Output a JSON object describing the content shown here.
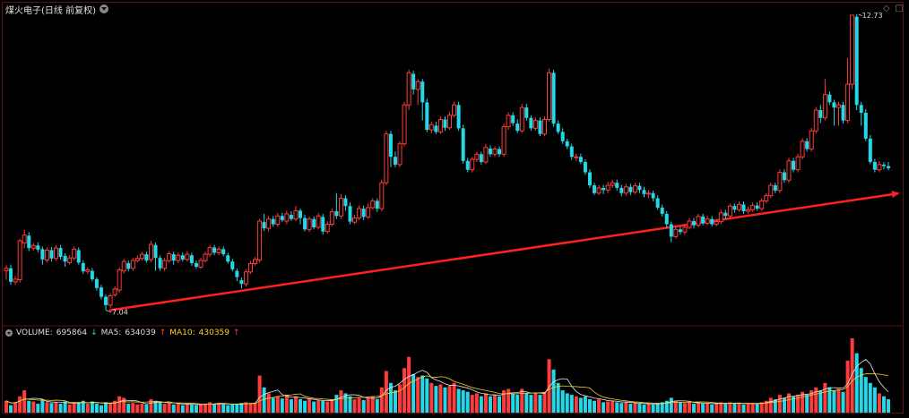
{
  "header": {
    "title": "煤火电子(日线 前复权)"
  },
  "volume_legend": {
    "volume_label": "VOLUME: ",
    "volume_value": "695864",
    "volume_arrow": "↓",
    "ma5_label": "MA5: ",
    "ma5_value": "634039",
    "ma5_arrow": "↑",
    "ma10_label": "MA10: ",
    "ma10_value": "430359",
    "ma10_arrow": "↑"
  },
  "colors": {
    "up": "#ff3b3b",
    "down": "#25d8e8",
    "trendline": "#ff2020",
    "ma5": "#e8e8e8",
    "ma10": "#f5d22c"
  },
  "chart_data": {
    "type": "candlestick",
    "price_range": [
      7.0,
      12.73
    ],
    "annotations": {
      "low": "7.04",
      "high": "12.73"
    },
    "trendline": {
      "start_price": 7.04,
      "end_price": 9.3
    },
    "candles": [
      [
        7.8,
        7.85,
        7.91,
        7.63
      ],
      [
        7.85,
        7.59,
        7.92,
        7.53
      ],
      [
        7.59,
        7.64,
        7.7,
        7.53
      ],
      [
        7.63,
        8.38,
        8.42,
        7.58
      ],
      [
        8.34,
        8.49,
        8.59,
        8.24
      ],
      [
        8.48,
        8.24,
        8.55,
        8.18
      ],
      [
        8.24,
        8.29,
        8.34,
        8.19
      ],
      [
        8.29,
        8.21,
        8.35,
        8.16
      ],
      [
        8.22,
        8.02,
        8.27,
        7.92
      ],
      [
        8.01,
        8.2,
        8.25,
        7.96
      ],
      [
        8.2,
        8.04,
        8.26,
        7.98
      ],
      [
        8.04,
        8.24,
        8.29,
        8.0
      ],
      [
        8.24,
        8.07,
        8.3,
        8.02
      ],
      [
        8.09,
        7.98,
        8.14,
        7.88
      ],
      [
        7.96,
        8.05,
        8.1,
        7.92
      ],
      [
        8.05,
        8.22,
        8.27,
        8.0
      ],
      [
        8.2,
        7.96,
        8.25,
        7.92
      ],
      [
        7.95,
        7.79,
        8.0,
        7.74
      ],
      [
        7.79,
        7.82,
        7.87,
        7.74
      ],
      [
        7.8,
        7.64,
        7.85,
        7.6
      ],
      [
        7.64,
        7.47,
        7.68,
        7.42
      ],
      [
        7.48,
        7.3,
        7.53,
        7.25
      ],
      [
        7.3,
        7.14,
        7.35,
        7.04
      ],
      [
        7.14,
        7.32,
        7.37,
        7.09
      ],
      [
        7.34,
        7.45,
        7.5,
        7.3
      ],
      [
        7.43,
        7.82,
        7.87,
        7.38
      ],
      [
        7.8,
        7.98,
        8.03,
        7.75
      ],
      [
        7.95,
        7.84,
        8.0,
        7.79
      ],
      [
        7.85,
        8.0,
        8.05,
        7.8
      ],
      [
        8.0,
        8.04,
        8.1,
        7.96
      ],
      [
        8.04,
        8.12,
        8.17,
        8.0
      ],
      [
        8.12,
        8.0,
        8.17,
        7.96
      ],
      [
        8.02,
        8.31,
        8.38,
        7.97
      ],
      [
        8.3,
        8.05,
        8.35,
        7.8
      ],
      [
        8.05,
        7.85,
        8.1,
        7.8
      ],
      [
        7.85,
        8.0,
        8.05,
        7.8
      ],
      [
        8.0,
        8.13,
        8.18,
        7.96
      ],
      [
        8.12,
        8.0,
        8.17,
        7.92
      ],
      [
        8.0,
        8.1,
        8.15,
        7.95
      ],
      [
        8.1,
        8.02,
        8.15,
        7.98
      ],
      [
        8.02,
        8.12,
        8.18,
        7.98
      ],
      [
        8.1,
        7.95,
        8.15,
        7.9
      ],
      [
        7.95,
        7.88,
        8.0,
        7.84
      ],
      [
        7.87,
        8.0,
        8.05,
        7.84
      ],
      [
        8.0,
        8.12,
        8.17,
        7.96
      ],
      [
        8.12,
        8.25,
        8.3,
        8.07
      ],
      [
        8.25,
        8.15,
        8.3,
        8.1
      ],
      [
        8.15,
        8.22,
        8.27,
        8.1
      ],
      [
        8.22,
        8.12,
        8.27,
        8.08
      ],
      [
        8.1,
        7.98,
        8.15,
        7.94
      ],
      [
        7.98,
        7.83,
        8.03,
        7.79
      ],
      [
        7.8,
        7.68,
        7.85,
        7.6
      ],
      [
        7.62,
        7.55,
        7.67,
        7.46
      ],
      [
        7.55,
        7.78,
        7.83,
        7.5
      ],
      [
        7.78,
        7.94,
        7.99,
        7.74
      ],
      [
        7.94,
        8.02,
        8.07,
        7.9
      ],
      [
        8.01,
        8.76,
        8.8,
        7.96
      ],
      [
        8.74,
        8.62,
        8.9,
        8.57
      ],
      [
        8.62,
        8.8,
        8.86,
        8.56
      ],
      [
        8.8,
        8.7,
        8.86,
        8.65
      ],
      [
        8.7,
        8.86,
        8.92,
        8.65
      ],
      [
        8.86,
        8.78,
        8.92,
        8.74
      ],
      [
        8.76,
        8.9,
        8.96,
        8.7
      ],
      [
        8.88,
        8.8,
        8.95,
        8.76
      ],
      [
        8.8,
        8.96,
        9.05,
        8.76
      ],
      [
        8.96,
        8.82,
        9.0,
        8.7
      ],
      [
        8.82,
        8.6,
        8.88,
        8.56
      ],
      [
        8.6,
        8.8,
        8.85,
        8.55
      ],
      [
        8.8,
        8.64,
        8.85,
        8.6
      ],
      [
        8.64,
        8.86,
        8.92,
        8.6
      ],
      [
        8.84,
        8.56,
        8.9,
        8.5
      ],
      [
        8.56,
        8.7,
        8.76,
        8.52
      ],
      [
        8.7,
        8.94,
        9.0,
        8.66
      ],
      [
        8.95,
        8.86,
        9.3,
        8.8
      ],
      [
        8.86,
        9.2,
        9.28,
        8.8
      ],
      [
        9.2,
        9.05,
        9.26,
        8.96
      ],
      [
        9.05,
        8.75,
        9.12,
        8.7
      ],
      [
        8.74,
        8.82,
        8.88,
        8.7
      ],
      [
        8.82,
        9.0,
        9.06,
        8.78
      ],
      [
        9.0,
        8.84,
        9.06,
        8.78
      ],
      [
        8.84,
        9.02,
        9.1,
        8.8
      ],
      [
        9.02,
        9.15,
        9.2,
        8.98
      ],
      [
        9.15,
        9.0,
        9.2,
        8.94
      ],
      [
        9.0,
        9.5,
        9.56,
        8.95
      ],
      [
        9.5,
        10.44,
        10.5,
        9.45
      ],
      [
        10.44,
        10.0,
        10.5,
        9.8
      ],
      [
        10.0,
        9.85,
        10.1,
        9.8
      ],
      [
        9.85,
        10.25,
        10.3,
        9.8
      ],
      [
        10.25,
        11.0,
        11.06,
        10.2
      ],
      [
        11.0,
        11.62,
        11.68,
        10.9
      ],
      [
        11.6,
        11.3,
        11.66,
        11.2
      ],
      [
        11.3,
        11.45,
        11.5,
        11.0
      ],
      [
        11.45,
        11.05,
        11.5,
        10.7
      ],
      [
        11.05,
        10.52,
        11.12,
        10.48
      ],
      [
        10.52,
        10.62,
        10.68,
        10.45
      ],
      [
        10.6,
        10.48,
        10.68,
        10.44
      ],
      [
        10.48,
        10.72,
        10.78,
        10.44
      ],
      [
        10.72,
        10.56,
        10.78,
        10.5
      ],
      [
        10.56,
        10.8,
        10.86,
        10.52
      ],
      [
        10.8,
        11.0,
        11.06,
        10.76
      ],
      [
        11.0,
        10.55,
        11.06,
        10.5
      ],
      [
        10.55,
        9.92,
        10.62,
        9.87
      ],
      [
        9.92,
        9.75,
        9.98,
        9.7
      ],
      [
        9.75,
        9.95,
        10.0,
        9.7
      ],
      [
        9.95,
        10.05,
        10.1,
        9.9
      ],
      [
        10.05,
        9.9,
        10.1,
        9.85
      ],
      [
        9.9,
        10.18,
        10.25,
        9.86
      ],
      [
        10.16,
        10.05,
        10.22,
        10.0
      ],
      [
        10.05,
        10.15,
        10.2,
        10.0
      ],
      [
        10.15,
        10.05,
        10.2,
        10.0
      ],
      [
        10.05,
        10.58,
        10.64,
        10.0
      ],
      [
        10.58,
        10.8,
        10.86,
        10.52
      ],
      [
        10.8,
        10.65,
        10.86,
        10.6
      ],
      [
        10.64,
        10.5,
        10.72,
        10.46
      ],
      [
        10.5,
        10.95,
        11.02,
        10.46
      ],
      [
        10.95,
        10.75,
        11.02,
        10.7
      ],
      [
        10.75,
        10.55,
        10.8,
        10.5
      ],
      [
        10.55,
        10.7,
        10.76,
        10.5
      ],
      [
        10.7,
        10.44,
        10.76,
        10.4
      ],
      [
        10.44,
        10.72,
        10.78,
        10.4
      ],
      [
        10.72,
        11.62,
        11.7,
        10.68
      ],
      [
        11.62,
        10.64,
        11.68,
        10.58
      ],
      [
        10.64,
        10.48,
        10.7,
        10.44
      ],
      [
        10.48,
        10.3,
        10.55,
        10.25
      ],
      [
        10.3,
        10.2,
        10.35,
        10.15
      ],
      [
        10.2,
        10.0,
        10.25,
        9.94
      ],
      [
        10.0,
        10.0,
        10.06,
        9.92
      ],
      [
        10.0,
        9.9,
        10.06,
        9.86
      ],
      [
        9.9,
        9.7,
        9.95,
        9.65
      ],
      [
        9.7,
        9.45,
        9.76,
        9.4
      ],
      [
        9.45,
        9.3,
        9.5,
        9.26
      ],
      [
        9.3,
        9.4,
        9.46,
        9.26
      ],
      [
        9.4,
        9.36,
        9.46,
        9.28
      ],
      [
        9.36,
        9.45,
        9.52,
        9.3
      ],
      [
        9.45,
        9.5,
        9.56,
        9.4
      ],
      [
        9.5,
        9.4,
        9.56,
        9.35
      ],
      [
        9.4,
        9.3,
        9.46,
        9.24
      ],
      [
        9.3,
        9.42,
        9.48,
        9.25
      ],
      [
        9.42,
        9.32,
        9.48,
        9.26
      ],
      [
        9.32,
        9.44,
        9.5,
        9.28
      ],
      [
        9.44,
        9.36,
        9.5,
        9.3
      ],
      [
        9.36,
        9.28,
        9.42,
        9.22
      ],
      [
        9.28,
        9.3,
        9.36,
        9.2
      ],
      [
        9.3,
        9.2,
        9.35,
        9.14
      ],
      [
        9.2,
        9.02,
        9.26,
        8.98
      ],
      [
        9.02,
        8.9,
        9.08,
        8.85
      ],
      [
        8.9,
        8.7,
        8.95,
        8.62
      ],
      [
        8.7,
        8.46,
        8.75,
        8.35
      ],
      [
        8.46,
        8.6,
        8.66,
        8.42
      ],
      [
        8.6,
        8.55,
        8.65,
        8.5
      ],
      [
        8.55,
        8.64,
        8.7,
        8.5
      ],
      [
        8.64,
        8.76,
        8.82,
        8.6
      ],
      [
        8.76,
        8.68,
        8.82,
        8.62
      ],
      [
        8.68,
        8.85,
        8.9,
        8.64
      ],
      [
        8.85,
        8.72,
        8.9,
        8.68
      ],
      [
        8.72,
        8.8,
        8.86,
        8.68
      ],
      [
        8.8,
        8.7,
        8.86,
        8.66
      ],
      [
        8.7,
        8.75,
        8.8,
        8.66
      ],
      [
        8.75,
        8.92,
        8.98,
        8.7
      ],
      [
        8.92,
        8.86,
        8.98,
        8.8
      ],
      [
        8.86,
        9.05,
        9.1,
        8.82
      ],
      [
        9.05,
        8.98,
        9.1,
        8.92
      ],
      [
        8.98,
        9.08,
        9.14,
        8.94
      ],
      [
        9.08,
        8.95,
        9.14,
        8.9
      ],
      [
        8.95,
        8.98,
        9.04,
        8.9
      ],
      [
        8.98,
        9.06,
        9.12,
        8.94
      ],
      [
        9.06,
        9.0,
        9.12,
        8.96
      ],
      [
        9.0,
        9.15,
        9.2,
        8.96
      ],
      [
        9.15,
        9.25,
        9.3,
        9.1
      ],
      [
        9.25,
        9.45,
        9.5,
        9.2
      ],
      [
        9.45,
        9.35,
        9.5,
        9.3
      ],
      [
        9.35,
        9.7,
        9.76,
        9.3
      ],
      [
        9.7,
        9.55,
        9.76,
        9.5
      ],
      [
        9.55,
        9.92,
        9.98,
        9.5
      ],
      [
        9.92,
        9.75,
        9.98,
        9.7
      ],
      [
        9.75,
        10.0,
        10.06,
        9.7
      ],
      [
        10.0,
        10.3,
        10.36,
        9.95
      ],
      [
        10.3,
        10.15,
        10.36,
        10.1
      ],
      [
        10.15,
        10.5,
        10.56,
        10.1
      ],
      [
        10.5,
        10.9,
        10.96,
        10.45
      ],
      [
        10.9,
        10.75,
        11.0,
        10.65
      ],
      [
        10.75,
        11.2,
        11.5,
        10.7
      ],
      [
        11.2,
        11.05,
        11.26,
        11.0
      ],
      [
        11.05,
        10.95,
        11.1,
        10.6
      ],
      [
        10.95,
        11.0,
        11.06,
        10.6
      ],
      [
        11.0,
        10.7,
        11.06,
        10.64
      ],
      [
        10.7,
        11.4,
        11.9,
        10.65
      ],
      [
        11.4,
        12.73,
        12.73,
        11.3
      ],
      [
        12.7,
        11.0,
        12.75,
        10.9
      ],
      [
        11.0,
        10.85,
        11.06,
        10.6
      ],
      [
        10.85,
        10.35,
        10.92,
        10.3
      ],
      [
        10.35,
        9.9,
        10.42,
        9.86
      ],
      [
        9.9,
        9.75,
        9.96,
        9.7
      ],
      [
        9.75,
        9.85,
        9.92,
        9.7
      ],
      [
        9.85,
        9.82,
        9.9,
        9.76
      ],
      [
        9.82,
        9.78,
        9.9,
        9.74
      ]
    ],
    "volumes": [
      0.16,
      0.1,
      0.14,
      0.22,
      0.3,
      0.16,
      0.15,
      0.12,
      0.18,
      0.14,
      0.13,
      0.14,
      0.12,
      0.15,
      0.11,
      0.13,
      0.14,
      0.16,
      0.12,
      0.15,
      0.12,
      0.1,
      0.14,
      0.12,
      0.16,
      0.22,
      0.2,
      0.12,
      0.13,
      0.11,
      0.12,
      0.11,
      0.18,
      0.16,
      0.14,
      0.12,
      0.13,
      0.11,
      0.12,
      0.1,
      0.12,
      0.11,
      0.1,
      0.11,
      0.12,
      0.14,
      0.12,
      0.13,
      0.11,
      0.1,
      0.11,
      0.12,
      0.13,
      0.14,
      0.12,
      0.13,
      0.5,
      0.34,
      0.26,
      0.2,
      0.22,
      0.19,
      0.24,
      0.18,
      0.22,
      0.18,
      0.16,
      0.19,
      0.15,
      0.17,
      0.16,
      0.15,
      0.18,
      0.24,
      0.3,
      0.26,
      0.22,
      0.18,
      0.2,
      0.17,
      0.2,
      0.22,
      0.18,
      0.34,
      0.56,
      0.4,
      0.3,
      0.38,
      0.6,
      0.75,
      0.52,
      0.48,
      0.5,
      0.46,
      0.4,
      0.36,
      0.38,
      0.34,
      0.36,
      0.4,
      0.32,
      0.3,
      0.28,
      0.24,
      0.26,
      0.22,
      0.26,
      0.22,
      0.24,
      0.22,
      0.3,
      0.32,
      0.26,
      0.24,
      0.32,
      0.26,
      0.24,
      0.26,
      0.24,
      0.28,
      0.72,
      0.58,
      0.4,
      0.3,
      0.26,
      0.24,
      0.22,
      0.2,
      0.22,
      0.18,
      0.16,
      0.18,
      0.14,
      0.15,
      0.16,
      0.14,
      0.13,
      0.14,
      0.12,
      0.13,
      0.12,
      0.11,
      0.12,
      0.11,
      0.13,
      0.14,
      0.16,
      0.2,
      0.16,
      0.14,
      0.13,
      0.14,
      0.12,
      0.13,
      0.12,
      0.13,
      0.11,
      0.12,
      0.14,
      0.12,
      0.14,
      0.12,
      0.13,
      0.11,
      0.12,
      0.13,
      0.12,
      0.14,
      0.16,
      0.2,
      0.18,
      0.24,
      0.2,
      0.26,
      0.22,
      0.24,
      0.28,
      0.24,
      0.3,
      0.34,
      0.3,
      0.4,
      0.34,
      0.3,
      0.32,
      0.28,
      0.7,
      1.0,
      0.8,
      0.6,
      0.48,
      0.4,
      0.34,
      0.26,
      0.22,
      0.18
    ]
  }
}
